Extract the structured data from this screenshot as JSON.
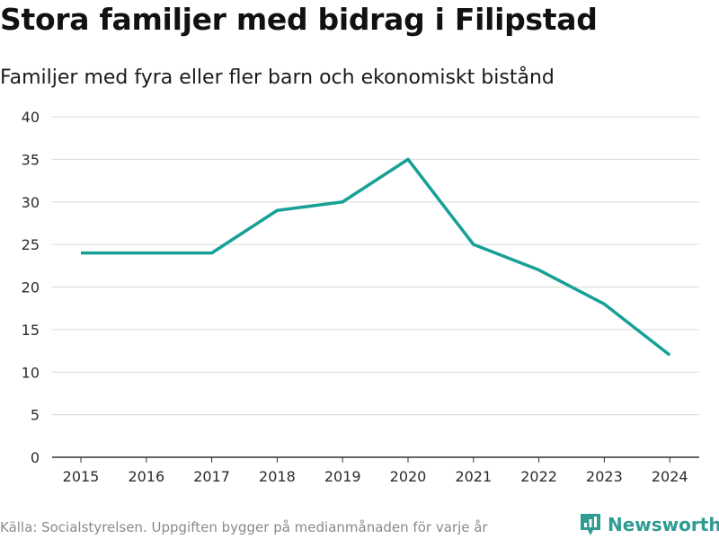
{
  "header": {
    "title": "Stora familjer med bidrag i Filipstad",
    "subtitle": "Familjer med fyra eller fler barn och ekonomiskt bistånd"
  },
  "footer": {
    "source": "Källa: Socialstyrelsen. Uppgiften bygger på medianmånaden för varje år",
    "brand": "Newsworthy"
  },
  "colors": {
    "line": "#17a096",
    "grid": "#d9d9d9",
    "axis": "#333333",
    "brand": "#2e9c93"
  },
  "chart_data": {
    "type": "line",
    "title": "Stora familjer med bidrag i Filipstad",
    "subtitle": "Familjer med fyra eller fler barn och ekonomiskt bistånd",
    "xlabel": "",
    "ylabel": "",
    "categories": [
      "2015",
      "2016",
      "2017",
      "2018",
      "2019",
      "2020",
      "2021",
      "2022",
      "2023",
      "2024"
    ],
    "series": [
      {
        "name": "Familjer med fyra eller fler barn och ekonomiskt bistånd",
        "values": [
          24,
          24,
          24,
          29,
          30,
          35,
          25,
          22,
          18,
          12
        ]
      }
    ],
    "ylim": [
      0,
      40
    ],
    "yticks": [
      0,
      5,
      10,
      15,
      20,
      25,
      30,
      35,
      40
    ],
    "grid": true,
    "legend": "none"
  }
}
